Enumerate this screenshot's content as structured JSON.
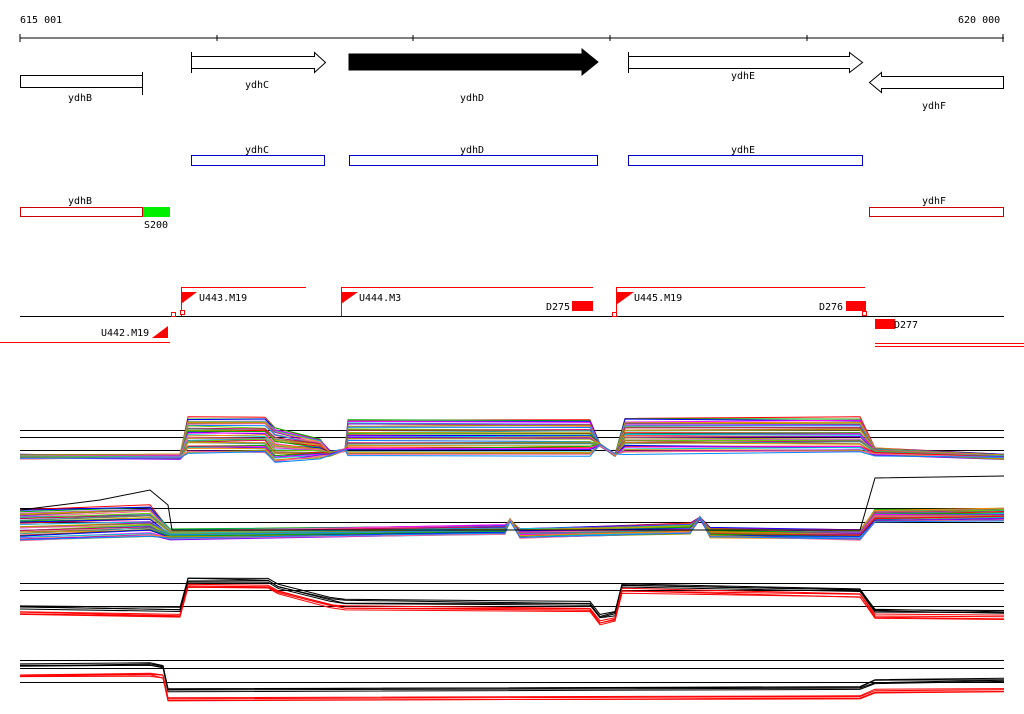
{
  "ruler": {
    "start_label": "615 001",
    "end_label": "620 000"
  },
  "genes": {
    "ydhB": {
      "label": "ydhB"
    },
    "ydhC": {
      "label": "ydhC"
    },
    "ydhD": {
      "label": "ydhD"
    },
    "ydhE": {
      "label": "ydhE"
    },
    "ydhF": {
      "label": "ydhF"
    }
  },
  "cds": {
    "ydhC": {
      "label": "ydhC"
    },
    "ydhD": {
      "label": "ydhD"
    },
    "ydhE": {
      "label": "ydhE"
    }
  },
  "features": {
    "ydhB": {
      "label": "ydhB"
    },
    "ydhF": {
      "label": "ydhF"
    },
    "S200": {
      "label": "S200"
    }
  },
  "transcripts": {
    "U442": {
      "label": "U442.M19"
    },
    "U443": {
      "label": "U443.M19"
    },
    "U444": {
      "label": "U444.M3"
    },
    "U445": {
      "label": "U445.M19"
    },
    "D275": {
      "label": "D275"
    },
    "D276": {
      "label": "D276"
    },
    "D277": {
      "label": "D277"
    }
  },
  "colors": {
    "cds_outline": "#0000cc",
    "feature_outline": "#cc0000",
    "segment_red": "#ff0000",
    "s200_green": "#00ee00",
    "black": "#000000"
  },
  "track_palette": [
    "#ff0000",
    "#00aa00",
    "#0000ff",
    "#ff00ff",
    "#00cccc",
    "#ff8800",
    "#8800ff",
    "#999900",
    "#ff6699",
    "#0088ff",
    "#66cc00",
    "#cc0066",
    "#996633",
    "#339999",
    "#cc9900"
  ]
}
